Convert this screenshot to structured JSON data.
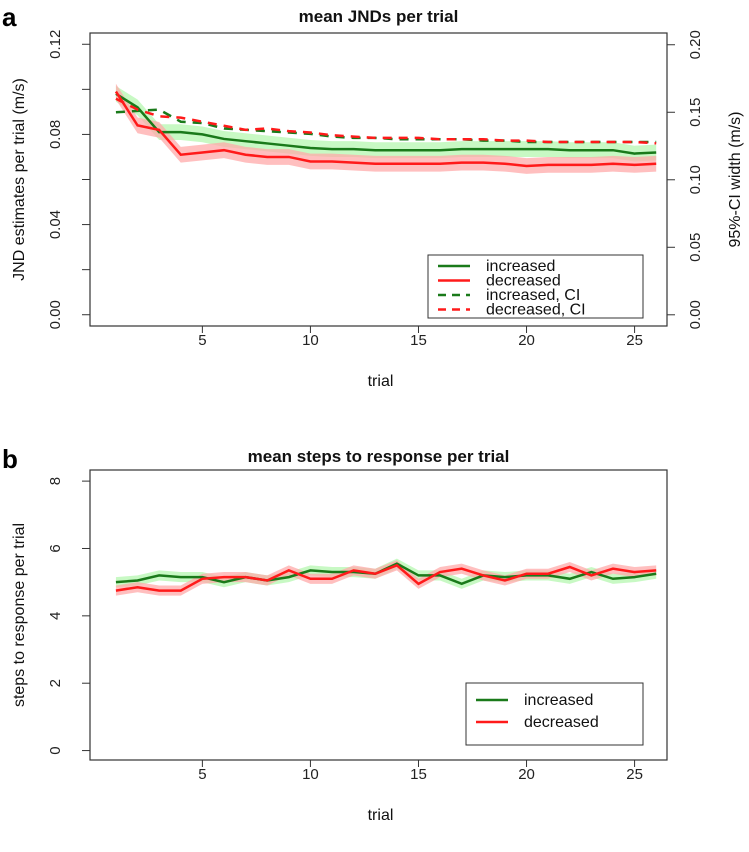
{
  "chart_data": [
    {
      "type": "line",
      "panel_letter": "a",
      "title": "mean JNDs per trial",
      "xlabel": "trial",
      "ylabel": "JND estimates per trial (m/s)",
      "ylabel_right": "95%-CI width (m/s)",
      "xlim": [
        -0.2,
        26.5
      ],
      "ylim": [
        -0.005,
        0.125
      ],
      "ylim_right": [
        -0.0083,
        0.2087
      ],
      "xticks": [
        5,
        10,
        15,
        20,
        25
      ],
      "xtick_labels": [
        "5",
        "10",
        "15",
        "20",
        "25"
      ],
      "yticks": [
        0,
        0.02,
        0.04,
        0.06,
        0.08,
        0.1,
        0.12
      ],
      "ytick_labels": [
        "0.00",
        "",
        "0.04",
        "",
        "0.08",
        "",
        "0.12"
      ],
      "yticks_right": [
        0,
        0.05,
        0.1,
        0.15,
        0.2
      ],
      "ytick_labels_right": [
        "0.00",
        "0.05",
        "0.10",
        "0.15",
        "0.20"
      ],
      "x": [
        1,
        2,
        3,
        4,
        5,
        6,
        7,
        8,
        9,
        10,
        11,
        12,
        13,
        14,
        15,
        16,
        17,
        18,
        19,
        20,
        21,
        22,
        23,
        24,
        25,
        26
      ],
      "series": [
        {
          "name": "increased",
          "axis": "left",
          "color": "#1a7a1a",
          "band": "#b6f7b0",
          "dash": false,
          "band_half": 0.0035,
          "values": [
            0.098,
            0.092,
            0.081,
            0.081,
            0.08,
            0.078,
            0.077,
            0.076,
            0.075,
            0.074,
            0.0735,
            0.0735,
            0.073,
            0.073,
            0.073,
            0.073,
            0.0735,
            0.0735,
            0.0735,
            0.0735,
            0.0735,
            0.073,
            0.073,
            0.073,
            0.0715,
            0.072
          ]
        },
        {
          "name": "decreased",
          "axis": "left",
          "color": "#ff1a1a",
          "band": "#ffaaaa",
          "dash": false,
          "band_half": 0.0035,
          "values": [
            0.099,
            0.084,
            0.082,
            0.071,
            0.072,
            0.073,
            0.071,
            0.07,
            0.07,
            0.068,
            0.068,
            0.0675,
            0.067,
            0.067,
            0.067,
            0.067,
            0.0675,
            0.0675,
            0.067,
            0.066,
            0.0665,
            0.0665,
            0.0665,
            0.067,
            0.0665,
            0.067
          ]
        },
        {
          "name": "increased, CI",
          "axis": "right",
          "color": "#1a7a1a",
          "dash": true,
          "values": [
            0.15,
            0.151,
            0.152,
            0.143,
            0.142,
            0.138,
            0.137,
            0.136,
            0.135,
            0.134,
            0.132,
            0.131,
            0.131,
            0.13,
            0.13,
            0.13,
            0.13,
            0.129,
            0.129,
            0.128,
            0.128,
            0.128,
            0.128,
            0.128,
            0.128,
            0.128
          ]
        },
        {
          "name": "decreased, CI",
          "axis": "right",
          "color": "#ff1a1a",
          "dash": true,
          "values": [
            0.16,
            0.152,
            0.147,
            0.146,
            0.143,
            0.14,
            0.137,
            0.138,
            0.136,
            0.135,
            0.133,
            0.132,
            0.131,
            0.131,
            0.131,
            0.13,
            0.13,
            0.13,
            0.129,
            0.129,
            0.128,
            0.128,
            0.128,
            0.128,
            0.128,
            0.127
          ]
        }
      ],
      "legend": {
        "placement": "bottom-right"
      }
    },
    {
      "type": "line",
      "panel_letter": "b",
      "title": "mean steps to response per trial",
      "xlabel": "trial",
      "ylabel": "steps to response per trial",
      "xlim": [
        -0.2,
        26.5
      ],
      "ylim": [
        -0.28,
        8.33
      ],
      "xticks": [
        5,
        10,
        15,
        20,
        25
      ],
      "xtick_labels": [
        "5",
        "10",
        "15",
        "20",
        "25"
      ],
      "yticks": [
        0,
        2,
        4,
        6,
        8
      ],
      "ytick_labels": [
        "0",
        "2",
        "4",
        "6",
        "8"
      ],
      "x": [
        1,
        2,
        3,
        4,
        5,
        6,
        7,
        8,
        9,
        10,
        11,
        12,
        13,
        14,
        15,
        16,
        17,
        18,
        19,
        20,
        21,
        22,
        23,
        24,
        25,
        26
      ],
      "series": [
        {
          "name": "increased",
          "axis": "left",
          "color": "#1a7a1a",
          "band": "#b6f7b0",
          "dash": false,
          "band_half": 0.15,
          "values": [
            5.0,
            5.05,
            5.2,
            5.15,
            5.15,
            5.0,
            5.15,
            5.05,
            5.15,
            5.35,
            5.3,
            5.3,
            5.25,
            5.55,
            5.2,
            5.2,
            4.95,
            5.2,
            5.15,
            5.2,
            5.2,
            5.1,
            5.3,
            5.1,
            5.15,
            5.25
          ]
        },
        {
          "name": "decreased",
          "axis": "left",
          "color": "#ff1a1a",
          "band": "#ffaaaa",
          "dash": false,
          "band_half": 0.15,
          "values": [
            4.75,
            4.85,
            4.75,
            4.75,
            5.1,
            5.15,
            5.15,
            5.05,
            5.35,
            5.1,
            5.1,
            5.35,
            5.25,
            5.5,
            4.95,
            5.3,
            5.4,
            5.2,
            5.05,
            5.25,
            5.25,
            5.45,
            5.2,
            5.4,
            5.3,
            5.35
          ]
        }
      ],
      "legend": {
        "placement": "bottom-right"
      }
    }
  ]
}
